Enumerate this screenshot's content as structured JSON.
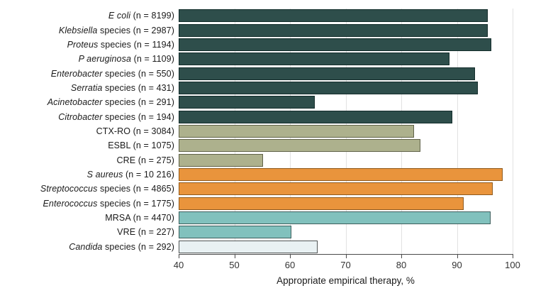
{
  "chart_data": {
    "type": "bar",
    "orientation": "horizontal",
    "title": "",
    "xlabel": "Appropriate empirical therapy, %",
    "ylabel": "",
    "xlim": [
      40,
      100
    ],
    "xticks": [
      40,
      50,
      60,
      70,
      80,
      90,
      100
    ],
    "grid": "vertical-light",
    "legend": "none",
    "groups": {
      "gram_negative": {
        "fill": "#2e4e4b",
        "border": "#142d2b"
      },
      "resistant_gram_negative": {
        "fill": "#adb18d",
        "border": "#606249"
      },
      "gram_positive": {
        "fill": "#e9943c",
        "border": "#8f5a1e"
      },
      "resistant_gram_positive": {
        "fill": "#81c1bd",
        "border": "#3e5f5d"
      },
      "fungal": {
        "fill": "#e9f1f3",
        "border": "#515556"
      }
    },
    "rows": [
      {
        "italic": "E coli",
        "rest": " (n = 8199)",
        "value": 95.6,
        "group": "gram_negative"
      },
      {
        "italic": "Klebsiella",
        "rest": " species (n = 2987)",
        "value": 95.5,
        "group": "gram_negative"
      },
      {
        "italic": "Proteus",
        "rest": " species (n = 1194)",
        "value": 96.2,
        "group": "gram_negative"
      },
      {
        "italic": "P aeruginosa",
        "rest": " (n = 1109)",
        "value": 88.6,
        "group": "gram_negative"
      },
      {
        "italic": "Enterobacter",
        "rest": " species (n = 550)",
        "value": 93.2,
        "group": "gram_negative"
      },
      {
        "italic": "Serratia",
        "rest": " species (n = 431)",
        "value": 93.7,
        "group": "gram_negative"
      },
      {
        "italic": "Acinetobacter",
        "rest": " species (n = 291)",
        "value": 64.5,
        "group": "gram_negative"
      },
      {
        "italic": "Citrobacter",
        "rest": " species (n = 194)",
        "value": 89.2,
        "group": "gram_negative"
      },
      {
        "italic": "",
        "rest": "CTX-RO (n = 3084)",
        "value": 82.3,
        "group": "resistant_gram_negative"
      },
      {
        "italic": "",
        "rest": "ESBL (n = 1075)",
        "value": 83.4,
        "group": "resistant_gram_negative"
      },
      {
        "italic": "",
        "rest": "CRE (n = 275)",
        "value": 55.1,
        "group": "resistant_gram_negative"
      },
      {
        "italic": "S aureus",
        "rest": " (n = 10 216)",
        "value": 98.2,
        "group": "gram_positive"
      },
      {
        "italic": "Streptococcus",
        "rest": " species (n = 4865)",
        "value": 96.4,
        "group": "gram_positive"
      },
      {
        "italic": "Enterococcus",
        "rest": " species (n = 1775)",
        "value": 91.2,
        "group": "gram_positive"
      },
      {
        "italic": "",
        "rest": "MRSA (n = 4470)",
        "value": 96.1,
        "group": "resistant_gram_positive"
      },
      {
        "italic": "",
        "rest": "VRE (n = 227)",
        "value": 60.3,
        "group": "resistant_gram_positive"
      },
      {
        "italic": "Candida",
        "rest": " species (n = 292)",
        "value": 65.0,
        "group": "fungal"
      }
    ]
  },
  "axis": {
    "title": "Appropriate empirical therapy, %"
  },
  "colors": {
    "gridline": "#e2e2e2",
    "axis_line": "#4a4a4a",
    "tick_label": "#333333",
    "label_text": "#1a1a1a"
  }
}
